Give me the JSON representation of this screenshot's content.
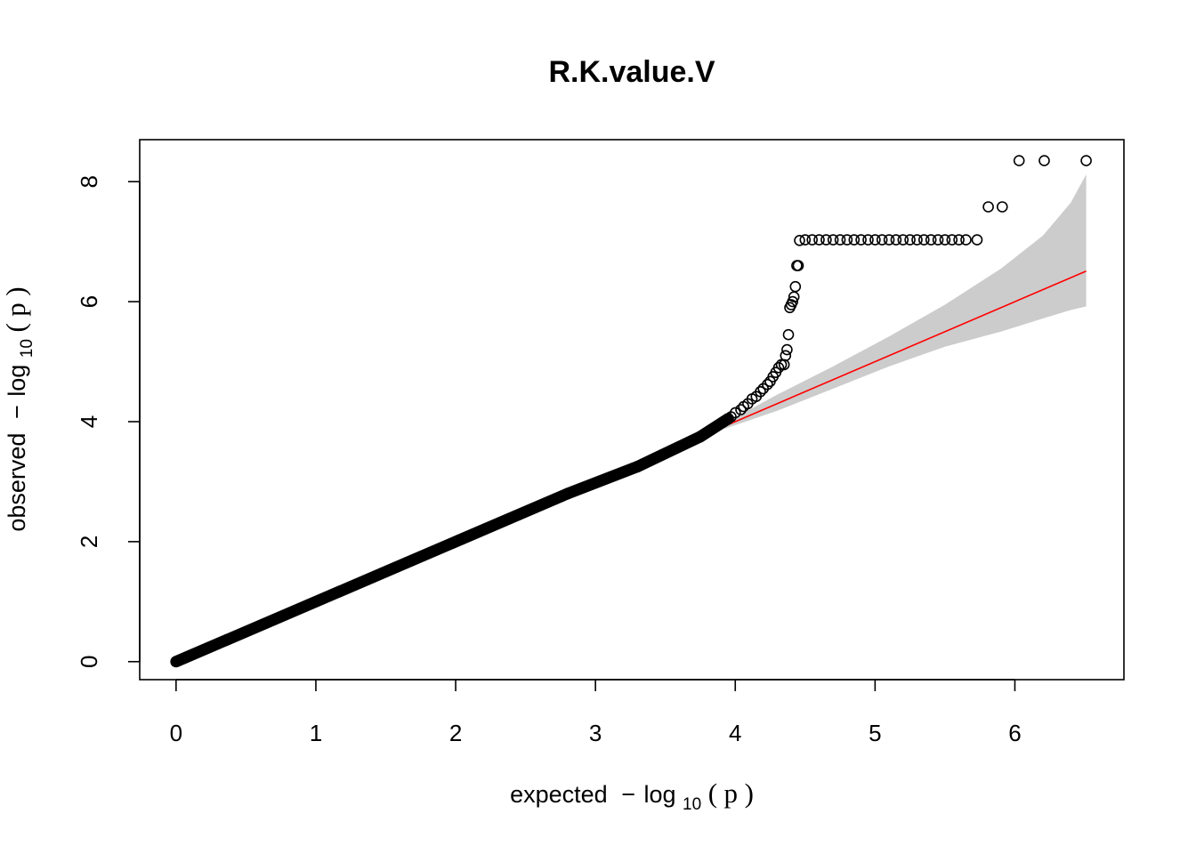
{
  "chart_data": {
    "type": "scatter",
    "title": "R.K.value.V",
    "xlabel": {
      "prefix": "expected",
      "minus": "−",
      "log": "log",
      "base": "10",
      "open_paren": "(",
      "var": "p",
      "close_paren": ")"
    },
    "ylabel": {
      "prefix": "observed",
      "minus": "−",
      "log": "log",
      "base": "10",
      "open_paren": "(",
      "var": "p",
      "close_paren": ")"
    },
    "xlim": [
      -0.26,
      6.78
    ],
    "ylim": [
      -0.3,
      8.7
    ],
    "x_ticks": [
      0,
      1,
      2,
      3,
      4,
      5,
      6
    ],
    "x_tick_labels": [
      "0",
      "1",
      "2",
      "3",
      "4",
      "5",
      "6"
    ],
    "y_ticks": [
      0,
      2,
      4,
      6,
      8
    ],
    "y_tick_labels": [
      "0",
      "2",
      "4",
      "6",
      "8"
    ],
    "grid": false,
    "legend": "none",
    "point_color": "#000000",
    "line_color": "#ff0000",
    "band_color": "#cccccc",
    "dense_segments": [
      {
        "x0": 0.0,
        "y0": 0.0,
        "x1": 2.8,
        "y1": 2.8
      },
      {
        "x0": 2.8,
        "y0": 2.8,
        "x1": 3.3,
        "y1": 3.25
      },
      {
        "x0": 3.3,
        "y0": 3.25,
        "x1": 3.75,
        "y1": 3.75
      },
      {
        "x0": 3.75,
        "y0": 3.75,
        "x1": 3.95,
        "y1": 4.05
      }
    ],
    "points": [
      [
        3.97,
        4.08
      ],
      [
        4.0,
        4.15
      ],
      [
        4.04,
        4.2
      ],
      [
        4.06,
        4.25
      ],
      [
        4.09,
        4.3
      ],
      [
        4.12,
        4.38
      ],
      [
        4.15,
        4.42
      ],
      [
        4.18,
        4.5
      ],
      [
        4.2,
        4.55
      ],
      [
        4.23,
        4.62
      ],
      [
        4.25,
        4.67
      ],
      [
        4.27,
        4.75
      ],
      [
        4.29,
        4.82
      ],
      [
        4.31,
        4.9
      ],
      [
        4.33,
        4.95
      ],
      [
        4.35,
        4.95
      ],
      [
        4.36,
        5.1
      ],
      [
        4.37,
        5.2
      ],
      [
        4.38,
        5.45
      ],
      [
        4.39,
        5.9
      ],
      [
        4.4,
        5.95
      ],
      [
        4.41,
        6.0
      ],
      [
        4.42,
        6.08
      ],
      [
        4.43,
        6.25
      ],
      [
        4.44,
        6.6
      ],
      [
        4.45,
        6.6
      ],
      [
        4.46,
        7.02
      ],
      [
        4.5,
        7.03
      ],
      [
        4.55,
        7.03
      ],
      [
        4.6,
        7.03
      ],
      [
        4.65,
        7.03
      ],
      [
        4.7,
        7.03
      ],
      [
        4.75,
        7.03
      ],
      [
        4.8,
        7.03
      ],
      [
        4.85,
        7.03
      ],
      [
        4.9,
        7.03
      ],
      [
        4.95,
        7.03
      ],
      [
        5.0,
        7.03
      ],
      [
        5.05,
        7.03
      ],
      [
        5.1,
        7.03
      ],
      [
        5.15,
        7.03
      ],
      [
        5.2,
        7.03
      ],
      [
        5.25,
        7.03
      ],
      [
        5.3,
        7.03
      ],
      [
        5.35,
        7.03
      ],
      [
        5.4,
        7.03
      ],
      [
        5.45,
        7.03
      ],
      [
        5.5,
        7.03
      ],
      [
        5.55,
        7.03
      ],
      [
        5.6,
        7.03
      ],
      [
        5.65,
        7.03
      ],
      [
        5.73,
        7.03
      ],
      [
        5.81,
        7.58
      ],
      [
        5.91,
        7.58
      ],
      [
        6.03,
        8.35
      ],
      [
        6.21,
        8.35
      ],
      [
        6.51,
        8.35
      ]
    ],
    "reference_line": {
      "x": [
        3.92,
        6.51
      ],
      "y": [
        3.92,
        6.51
      ]
    },
    "confidence_band": {
      "x": [
        3.92,
        4.3,
        4.7,
        5.1,
        5.5,
        5.9,
        6.2,
        6.4,
        6.51
      ],
      "upper": [
        3.97,
        4.45,
        4.92,
        5.42,
        5.95,
        6.55,
        7.1,
        7.65,
        8.12
      ],
      "lower": [
        3.88,
        4.18,
        4.55,
        4.92,
        5.25,
        5.5,
        5.72,
        5.86,
        5.92
      ]
    }
  }
}
